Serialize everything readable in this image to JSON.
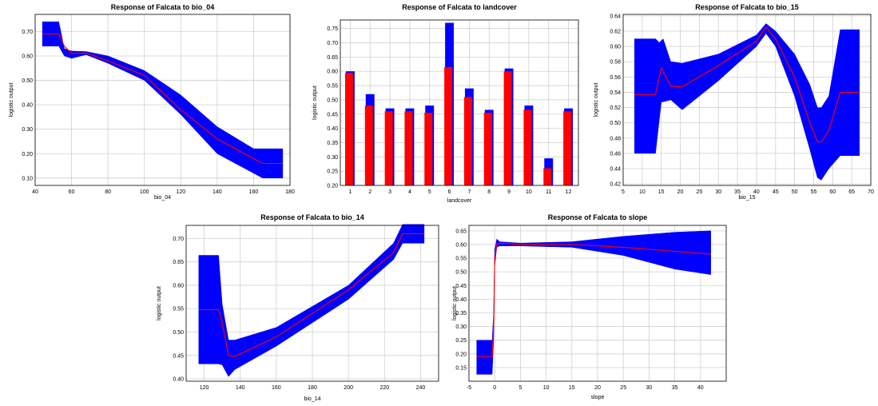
{
  "chart_data": [
    {
      "type": "line",
      "title": "Response of Falcata to bio_04",
      "xlabel": "bio_04",
      "ylabel": "logistic output",
      "xlim": [
        40,
        180
      ],
      "ylim": [
        0.07,
        0.77
      ],
      "xticks": [
        40,
        60,
        80,
        100,
        120,
        140,
        160,
        180
      ],
      "yticks": [
        0.1,
        0.2,
        0.3,
        0.4,
        0.5,
        0.6,
        0.7
      ],
      "grid": true,
      "series": [
        {
          "role": "mean",
          "color": "#ff0000",
          "x": [
            44,
            53,
            56,
            60,
            68,
            80,
            100,
            120,
            140,
            160,
            165,
            176
          ],
          "y": [
            0.69,
            0.69,
            0.64,
            0.61,
            0.612,
            0.58,
            0.52,
            0.38,
            0.26,
            0.18,
            0.16,
            0.16
          ]
        },
        {
          "role": "upper",
          "color": "#0000ff",
          "x": [
            44,
            53,
            56,
            60,
            68,
            80,
            100,
            120,
            140,
            160,
            165,
            176
          ],
          "y": [
            0.74,
            0.74,
            0.63,
            0.62,
            0.618,
            0.6,
            0.54,
            0.44,
            0.31,
            0.22,
            0.22,
            0.22
          ]
        },
        {
          "role": "lower",
          "color": "#0000ff",
          "x": [
            44,
            53,
            56,
            60,
            68,
            80,
            100,
            120,
            140,
            160,
            165,
            176
          ],
          "y": [
            0.64,
            0.64,
            0.6,
            0.59,
            0.605,
            0.57,
            0.5,
            0.36,
            0.2,
            0.12,
            0.1,
            0.1
          ]
        }
      ]
    },
    {
      "type": "bar",
      "title": "Response of Falcata to landcover",
      "xlabel": "landcover",
      "ylabel": "logistic output",
      "ylim": [
        0.2,
        0.78
      ],
      "yticks": [
        0.2,
        0.25,
        0.3,
        0.35,
        0.4,
        0.45,
        0.5,
        0.55,
        0.6,
        0.65,
        0.7,
        0.75
      ],
      "grid": true,
      "categories": [
        "1",
        "2",
        "3",
        "4",
        "5",
        "6",
        "7",
        "8",
        "9",
        "10",
        "11",
        "12"
      ],
      "series": [
        {
          "role": "upper",
          "color": "#0000ff",
          "values": [
            0.6,
            0.52,
            0.47,
            0.47,
            0.48,
            0.77,
            0.54,
            0.465,
            0.61,
            0.48,
            0.295,
            0.47
          ]
        },
        {
          "role": "mean",
          "color": "#ff0000",
          "values": [
            0.595,
            0.48,
            0.46,
            0.46,
            0.455,
            0.615,
            0.51,
            0.455,
            0.6,
            0.465,
            0.26,
            0.46
          ]
        },
        {
          "role": "lower",
          "color": "#00aaff",
          "values": [
            0.585,
            0.445,
            0.45,
            0.45,
            0.42,
            0.455,
            0.47,
            0.445,
            0.59,
            0.45,
            0.225,
            0.45
          ]
        }
      ]
    },
    {
      "type": "line",
      "title": "Response of Falcata to bio_15",
      "xlabel": "bio_15",
      "ylabel": "logistic output",
      "xlim": [
        5,
        70
      ],
      "ylim": [
        0.418,
        0.642
      ],
      "xticks": [
        5,
        10,
        15,
        20,
        25,
        30,
        35,
        40,
        45,
        50,
        55,
        60,
        65,
        70
      ],
      "yticks": [
        0.42,
        0.44,
        0.46,
        0.48,
        0.5,
        0.52,
        0.54,
        0.56,
        0.58,
        0.6,
        0.62,
        0.64
      ],
      "grid": true,
      "series": [
        {
          "role": "mean",
          "color": "#ff0000",
          "x": [
            8,
            13.5,
            15,
            17.5,
            20.5,
            30,
            40,
            42.5,
            45,
            50,
            54,
            56,
            57,
            59,
            62,
            67
          ],
          "y": [
            0.537,
            0.537,
            0.572,
            0.548,
            0.547,
            0.575,
            0.607,
            0.625,
            0.61,
            0.56,
            0.5,
            0.475,
            0.475,
            0.49,
            0.54,
            0.54
          ]
        },
        {
          "role": "upper",
          "color": "#0000ff",
          "x": [
            8,
            13.5,
            14.5,
            15.5,
            17.5,
            20.5,
            30,
            40,
            42.5,
            45,
            50,
            54,
            56,
            57,
            59,
            62,
            67
          ],
          "y": [
            0.61,
            0.61,
            0.605,
            0.61,
            0.58,
            0.578,
            0.59,
            0.615,
            0.63,
            0.62,
            0.59,
            0.55,
            0.52,
            0.52,
            0.535,
            0.622,
            0.622
          ]
        },
        {
          "role": "lower",
          "color": "#0000ff",
          "x": [
            8,
            13.5,
            15,
            17.5,
            20.5,
            30,
            40,
            42.5,
            45,
            50,
            54,
            56,
            57,
            59,
            62,
            67
          ],
          "y": [
            0.46,
            0.46,
            0.527,
            0.53,
            0.517,
            0.555,
            0.6,
            0.617,
            0.6,
            0.535,
            0.465,
            0.428,
            0.425,
            0.44,
            0.457,
            0.457
          ]
        }
      ]
    },
    {
      "type": "line",
      "title": "Response of Falcata to bio_14",
      "xlabel": "bio_14",
      "ylabel": "logistic output",
      "xlim": [
        110,
        250
      ],
      "ylim": [
        0.395,
        0.728
      ],
      "xticks": [
        120,
        140,
        160,
        180,
        200,
        220,
        240
      ],
      "yticks": [
        0.4,
        0.45,
        0.5,
        0.55,
        0.6,
        0.65,
        0.7
      ],
      "grid": true,
      "series": [
        {
          "role": "mean",
          "color": "#ff0000",
          "x": [
            117,
            128,
            130,
            133.5,
            137,
            160,
            200,
            225,
            230,
            242
          ],
          "y": [
            0.548,
            0.548,
            0.52,
            0.45,
            0.448,
            0.49,
            0.59,
            0.67,
            0.71,
            0.71
          ]
        },
        {
          "role": "upper",
          "color": "#0000ff",
          "x": [
            117,
            128,
            130,
            133.5,
            137,
            160,
            200,
            225,
            230,
            242
          ],
          "y": [
            0.664,
            0.664,
            0.56,
            0.483,
            0.483,
            0.51,
            0.6,
            0.69,
            0.73,
            0.73
          ]
        },
        {
          "role": "lower",
          "color": "#0000ff",
          "x": [
            117,
            128,
            130,
            133.5,
            137,
            160,
            200,
            225,
            230,
            242
          ],
          "y": [
            0.432,
            0.432,
            0.43,
            0.405,
            0.42,
            0.47,
            0.57,
            0.655,
            0.69,
            0.69
          ]
        }
      ]
    },
    {
      "type": "line",
      "title": "Response of Falcata to slope",
      "xlabel": "slope",
      "ylabel": "logistic output",
      "xlim": [
        -5,
        45
      ],
      "ylim": [
        0.1,
        0.67
      ],
      "xticks": [
        -5,
        0,
        5,
        10,
        15,
        20,
        25,
        30,
        35,
        40
      ],
      "yticks": [
        0.15,
        0.2,
        0.25,
        0.3,
        0.35,
        0.4,
        0.45,
        0.5,
        0.55,
        0.6,
        0.65
      ],
      "grid": true,
      "series": [
        {
          "role": "mean",
          "color": "#ff0000",
          "x": [
            -3.5,
            -0.5,
            -0.2,
            0,
            0.4,
            1,
            5,
            15,
            25,
            35,
            42
          ],
          "y": [
            0.19,
            0.19,
            0.3,
            0.55,
            0.6,
            0.605,
            0.6,
            0.6,
            0.59,
            0.575,
            0.565
          ]
        },
        {
          "role": "upper",
          "color": "#0000ff",
          "x": [
            -3.5,
            -0.5,
            -0.2,
            0,
            0.4,
            1,
            5,
            15,
            25,
            35,
            42
          ],
          "y": [
            0.25,
            0.25,
            0.35,
            0.58,
            0.62,
            0.61,
            0.605,
            0.61,
            0.63,
            0.645,
            0.65
          ]
        },
        {
          "role": "lower",
          "color": "#0000ff",
          "x": [
            -3.5,
            -0.5,
            -0.2,
            0,
            0.4,
            1,
            5,
            15,
            25,
            35,
            42
          ],
          "y": [
            0.125,
            0.125,
            0.25,
            0.52,
            0.59,
            0.595,
            0.595,
            0.59,
            0.56,
            0.51,
            0.49
          ]
        }
      ]
    }
  ]
}
